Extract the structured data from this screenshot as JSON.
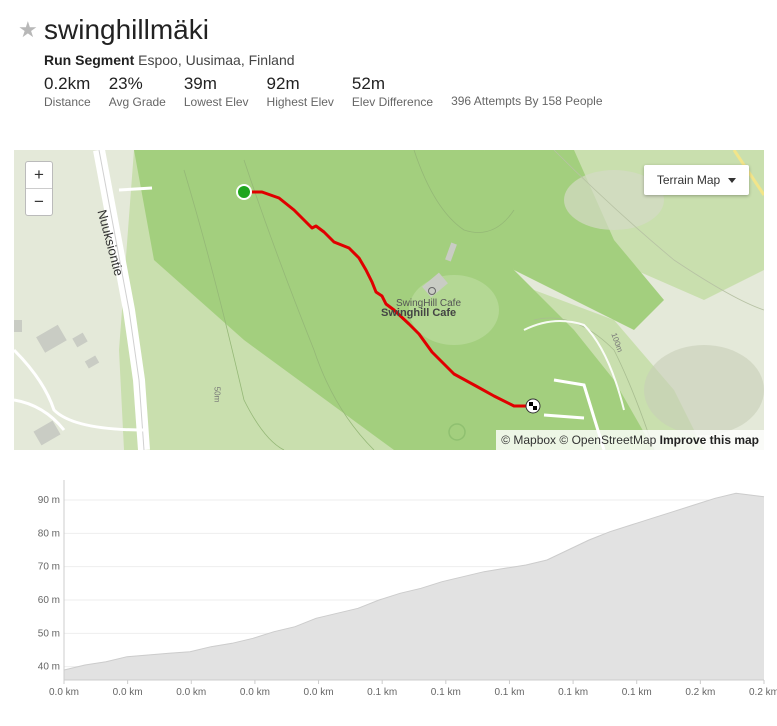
{
  "header": {
    "star_icon": "star-icon",
    "title": "swinghillmäki",
    "segment_type": "Run Segment",
    "location": "Espoo, Uusimaa, Finland"
  },
  "stats": [
    {
      "value": "0.2km",
      "label": "Distance"
    },
    {
      "value": "23%",
      "label": "Avg Grade"
    },
    {
      "value": "39m",
      "label": "Lowest Elev"
    },
    {
      "value": "92m",
      "label": "Highest Elev"
    },
    {
      "value": "52m",
      "label": "Elev Difference"
    }
  ],
  "attempts": "396 Attempts By 158 People",
  "map": {
    "zoom_in": "+",
    "zoom_out": "−",
    "terrain_label": "Terrain Map",
    "road_label": "Nuuksiontie",
    "poi_small": "SwingHill Cafe",
    "poi_bold": "Swinghill Cafe",
    "contour_50": "50m",
    "contour_100": "100m",
    "attribution_mapbox": "© Mapbox",
    "attribution_osm": "© OpenStreetMap",
    "attribution_improve": "Improve this map",
    "route_color": "#e00000",
    "start_color": "#1ea51e"
  },
  "chart_data": {
    "type": "area",
    "ytick_labels": [
      "40 m",
      "50 m",
      "60 m",
      "70 m",
      "80 m",
      "90 m"
    ],
    "yticks": [
      40,
      50,
      60,
      70,
      80,
      90
    ],
    "ylim": [
      36,
      96
    ],
    "xtick_labels": [
      "0.0 km",
      "0.0 km",
      "0.0 km",
      "0.0 km",
      "0.0 km",
      "0.1 km",
      "0.1 km",
      "0.1 km",
      "0.1 km",
      "0.1 km",
      "0.2 km",
      "0.2 km"
    ],
    "x": [
      0,
      0.03,
      0.06,
      0.09,
      0.12,
      0.15,
      0.18,
      0.21,
      0.24,
      0.27,
      0.3,
      0.33,
      0.36,
      0.39,
      0.42,
      0.45,
      0.48,
      0.51,
      0.54,
      0.57,
      0.6,
      0.63,
      0.66,
      0.69,
      0.72,
      0.75,
      0.78,
      0.81,
      0.84,
      0.87,
      0.9,
      0.93,
      0.96,
      0.98,
      1.0
    ],
    "values": [
      39,
      40.5,
      41.5,
      43,
      43.5,
      44,
      44.5,
      46,
      47,
      48.5,
      50.5,
      52,
      54.5,
      56,
      57.5,
      60,
      62,
      63.5,
      65.5,
      67,
      68.5,
      69.5,
      70.5,
      72,
      75,
      78,
      80.5,
      82.5,
      84.5,
      86.5,
      88.5,
      90.5,
      92,
      91.5,
      91
    ],
    "grid": true,
    "fill_color": "#e2e2e2",
    "line_color": "#cccccc"
  }
}
